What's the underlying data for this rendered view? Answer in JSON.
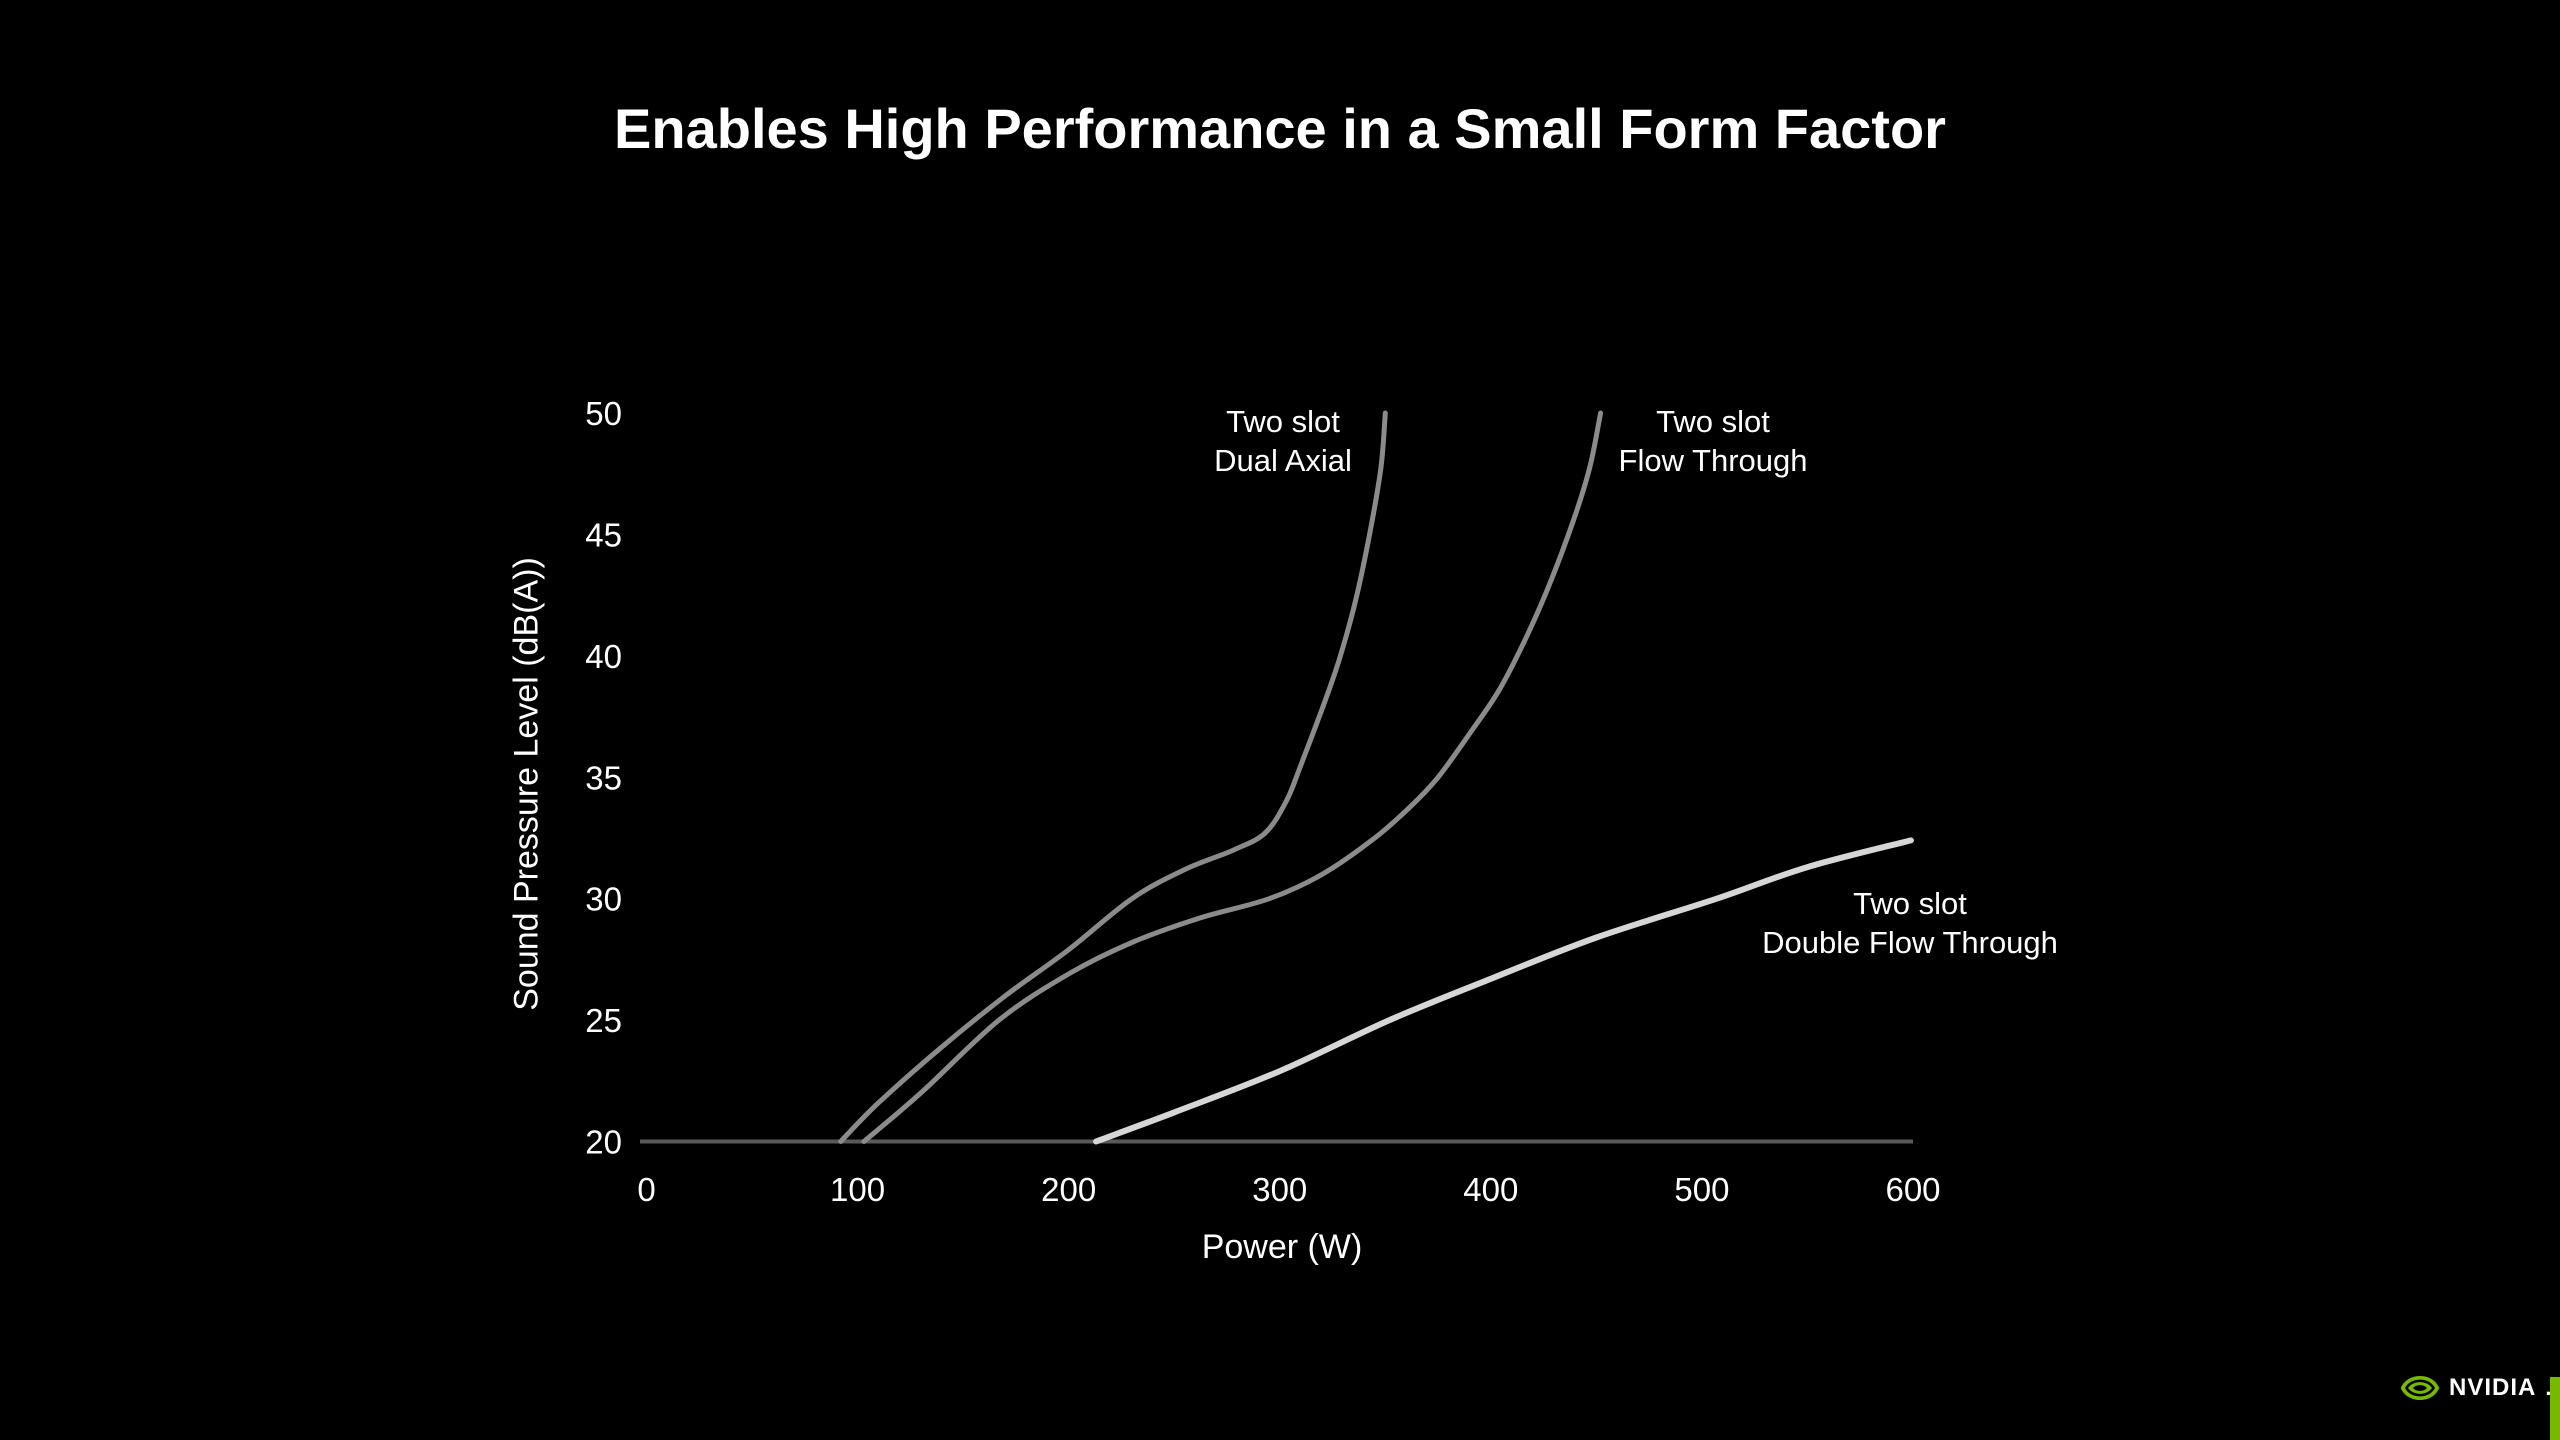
{
  "slide": {
    "title": "Enables High Performance in a Small Form Factor",
    "background_color": "#000000",
    "title_color": "#ffffff"
  },
  "branding": {
    "logo_text": "NVIDIA",
    "registered_mark": ".",
    "green": "#76b900"
  },
  "chart_data": {
    "type": "line",
    "title": "",
    "xlabel": "Power (W)",
    "ylabel": "Sound Pressure Level (dB(A))",
    "xlim": [
      0,
      600
    ],
    "ylim": [
      20,
      50
    ],
    "x_ticks": [
      0,
      100,
      200,
      300,
      400,
      500,
      600
    ],
    "y_ticks": [
      20,
      25,
      30,
      35,
      40,
      45,
      50
    ],
    "grid": false,
    "legend_position": "inline-labels",
    "axis_color": "#595959",
    "text_color": "#ffffff",
    "series": [
      {
        "name": "Two slot Dual Axial",
        "label_lines": [
          "Two slot",
          "Dual Axial"
        ],
        "color": "#8b8b8b",
        "stroke_width": 5,
        "points": [
          [
            92,
            20
          ],
          [
            110,
            21.6
          ],
          [
            140,
            23.9
          ],
          [
            170,
            26.0
          ],
          [
            200,
            27.9
          ],
          [
            230,
            30.0
          ],
          [
            255,
            31.2
          ],
          [
            278,
            32.0
          ],
          [
            293,
            32.7
          ],
          [
            303,
            34.0
          ],
          [
            310,
            35.5
          ],
          [
            320,
            37.8
          ],
          [
            328,
            39.8
          ],
          [
            336,
            42.3
          ],
          [
            343,
            45.2
          ],
          [
            348,
            47.8
          ],
          [
            350,
            50
          ]
        ]
      },
      {
        "name": "Two slot Flow Through",
        "label_lines": [
          "Two slot",
          "Flow Through"
        ],
        "color": "#8b8b8b",
        "stroke_width": 5,
        "points": [
          [
            103,
            20
          ],
          [
            130,
            22.0
          ],
          [
            167,
            25.0
          ],
          [
            200,
            26.9
          ],
          [
            230,
            28.2
          ],
          [
            262,
            29.2
          ],
          [
            295,
            30.0
          ],
          [
            320,
            31.0
          ],
          [
            345,
            32.5
          ],
          [
            362,
            33.8
          ],
          [
            375,
            35.0
          ],
          [
            390,
            36.8
          ],
          [
            404,
            38.6
          ],
          [
            417,
            40.8
          ],
          [
            429,
            43.2
          ],
          [
            440,
            45.8
          ],
          [
            447,
            47.8
          ],
          [
            452,
            50
          ]
        ]
      },
      {
        "name": "Two slot Double Flow Through",
        "label_lines": [
          "Two slot",
          "Double Flow Through"
        ],
        "color": "#d6d6d6",
        "stroke_width": 6,
        "points": [
          [
            213,
            20
          ],
          [
            250,
            21.2
          ],
          [
            300,
            22.9
          ],
          [
            352,
            25.0
          ],
          [
            400,
            26.7
          ],
          [
            450,
            28.4
          ],
          [
            507,
            30.0
          ],
          [
            550,
            31.3
          ],
          [
            599,
            32.4
          ]
        ]
      }
    ]
  }
}
